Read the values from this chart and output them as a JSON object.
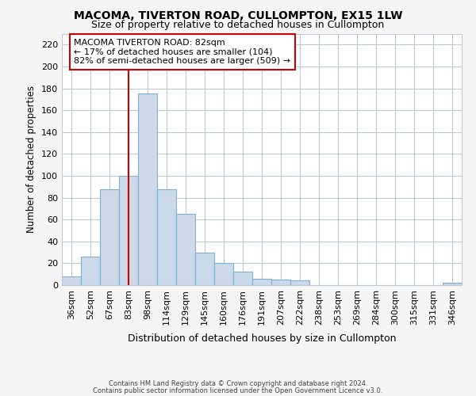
{
  "title_line1": "MACOMA, TIVERTON ROAD, CULLOMPTON, EX15 1LW",
  "title_line2": "Size of property relative to detached houses in Cullompton",
  "xlabel": "Distribution of detached houses by size in Cullompton",
  "ylabel": "Number of detached properties",
  "bin_labels": [
    "36sqm",
    "52sqm",
    "67sqm",
    "83sqm",
    "98sqm",
    "114sqm",
    "129sqm",
    "145sqm",
    "160sqm",
    "176sqm",
    "191sqm",
    "207sqm",
    "222sqm",
    "238sqm",
    "253sqm",
    "269sqm",
    "284sqm",
    "300sqm",
    "315sqm",
    "331sqm",
    "346sqm"
  ],
  "bar_values": [
    8,
    26,
    88,
    100,
    175,
    88,
    65,
    30,
    20,
    12,
    6,
    5,
    4,
    0,
    0,
    0,
    0,
    0,
    0,
    0,
    2
  ],
  "bar_color": "#ccd9e8",
  "bar_edge_color": "#7aafd4",
  "vline_x_index": 3,
  "vline_color": "#cc0000",
  "ylim": [
    0,
    230
  ],
  "yticks": [
    0,
    20,
    40,
    60,
    80,
    100,
    120,
    140,
    160,
    180,
    200,
    220
  ],
  "grid_color": "#b8c8d8",
  "annotation_title": "MACOMA TIVERTON ROAD: 82sqm",
  "annotation_line2": "← 17% of detached houses are smaller (104)",
  "annotation_line3": "82% of semi-detached houses are larger (509) →",
  "annotation_box_color": "#ffffff",
  "annotation_box_edge": "#cc0000",
  "footer_line1": "Contains HM Land Registry data © Crown copyright and database right 2024.",
  "footer_line2": "Contains public sector information licensed under the Open Government Licence v3.0.",
  "bg_color": "#f5f5f5",
  "plot_bg_color": "#ffffff",
  "title_fontsize": 10,
  "subtitle_fontsize": 9,
  "tick_fontsize": 8,
  "ylabel_fontsize": 8.5,
  "xlabel_fontsize": 9,
  "annotation_fontsize": 8,
  "footer_fontsize": 6
}
